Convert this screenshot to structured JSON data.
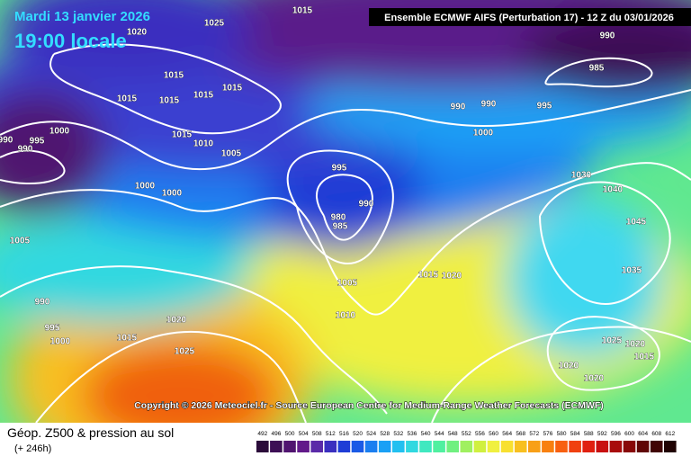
{
  "header": {
    "date": "Mardi 13 janvier 2026",
    "time": "19:00 locale",
    "model": "Ensemble ECMWF AIFS  (Perturbation 17)  -  12 Z du 03/01/2026"
  },
  "copyright": "Copyright © 2026 Meteociel.fr - Source European Centre for Medium-Range Weather Forecasts (ECMWF)",
  "footer": {
    "title": "Géop. Z500 & pression au sol",
    "lead": "(+ 246h)"
  },
  "pressure_labels": [
    1015,
    1025,
    1020,
    990,
    985,
    1015,
    1015,
    1015,
    1015,
    1015,
    990,
    990,
    995,
    1000,
    1015,
    1010,
    1005,
    1000,
    990,
    995,
    990,
    995,
    1030,
    1000,
    1000,
    1040,
    990,
    980,
    985,
    1045,
    1005,
    1035,
    1015,
    1020,
    1005,
    990,
    1010,
    1020,
    995,
    1000,
    1015,
    1025,
    1020,
    1025,
    1015,
    1020,
    1020
  ],
  "scale": {
    "values": [
      492,
      496,
      500,
      504,
      508,
      512,
      516,
      520,
      524,
      528,
      532,
      536,
      540,
      544,
      548,
      552,
      556,
      560,
      564,
      568,
      572,
      576,
      580,
      584,
      588,
      592,
      596,
      600,
      604,
      608,
      612
    ],
    "colors": [
      "#2b0b3a",
      "#3d0f55",
      "#501470",
      "#621a8a",
      "#5a2aa8",
      "#3a2fbf",
      "#1f3dd6",
      "#1a5ae6",
      "#1a7ef0",
      "#1aa0f5",
      "#22c0f0",
      "#30d8e0",
      "#40e8c0",
      "#50f0a0",
      "#70f080",
      "#a0f060",
      "#d0f040",
      "#f0f040",
      "#f8e030",
      "#f8c020",
      "#f8a018",
      "#f88010",
      "#f86010",
      "#f04010",
      "#e02010",
      "#c81010",
      "#a80c0c",
      "#880808",
      "#600606",
      "#400404",
      "#200202"
    ]
  }
}
